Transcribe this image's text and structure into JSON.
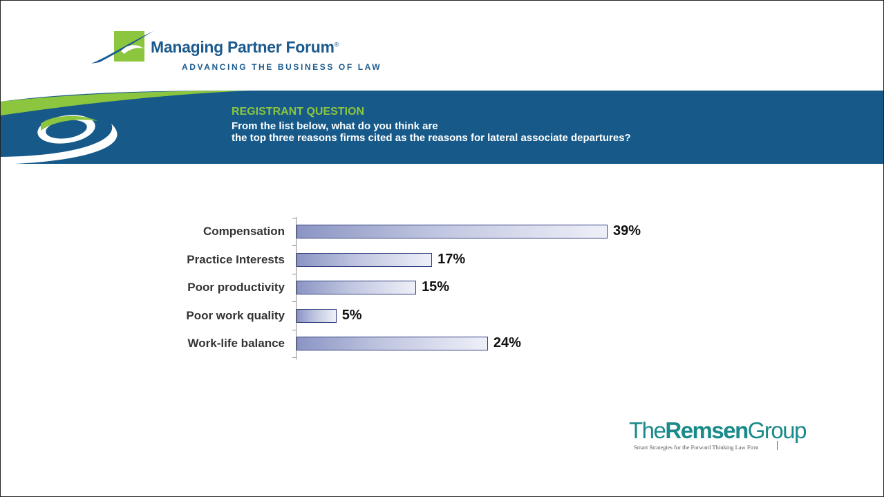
{
  "header": {
    "logo_title": "Managing Partner Forum",
    "logo_registered": "®",
    "logo_tagline": "ADVANCING THE BUSINESS OF LAW"
  },
  "banner": {
    "heading": "REGISTRANT QUESTION",
    "question_line1": "From the list below, what do you think are",
    "question_line2": "the top three reasons firms cited as the reasons for lateral associate departures?"
  },
  "chart_data": {
    "type": "bar",
    "orientation": "horizontal",
    "categories": [
      "Compensation",
      "Practice Interests",
      "Poor productivity",
      "Poor work quality",
      "Work-life balance"
    ],
    "values": [
      39,
      17,
      15,
      5,
      24
    ],
    "value_labels": [
      "39%",
      "17%",
      "15%",
      "5%",
      "24%"
    ],
    "xlim": [
      0,
      39
    ],
    "grid": false
  },
  "footer": {
    "remsen_prefix": "The",
    "remsen_bold": "Remsen",
    "remsen_suffix": "Group",
    "remsen_tagline": "Smart Strategies for the Forward Thinking Law Firm"
  },
  "colors": {
    "brand_blue": "#175a8a",
    "brand_green": "#8cc63f",
    "bar_border": "#2e3c7e",
    "remsen_teal": "#1b8a8a"
  }
}
